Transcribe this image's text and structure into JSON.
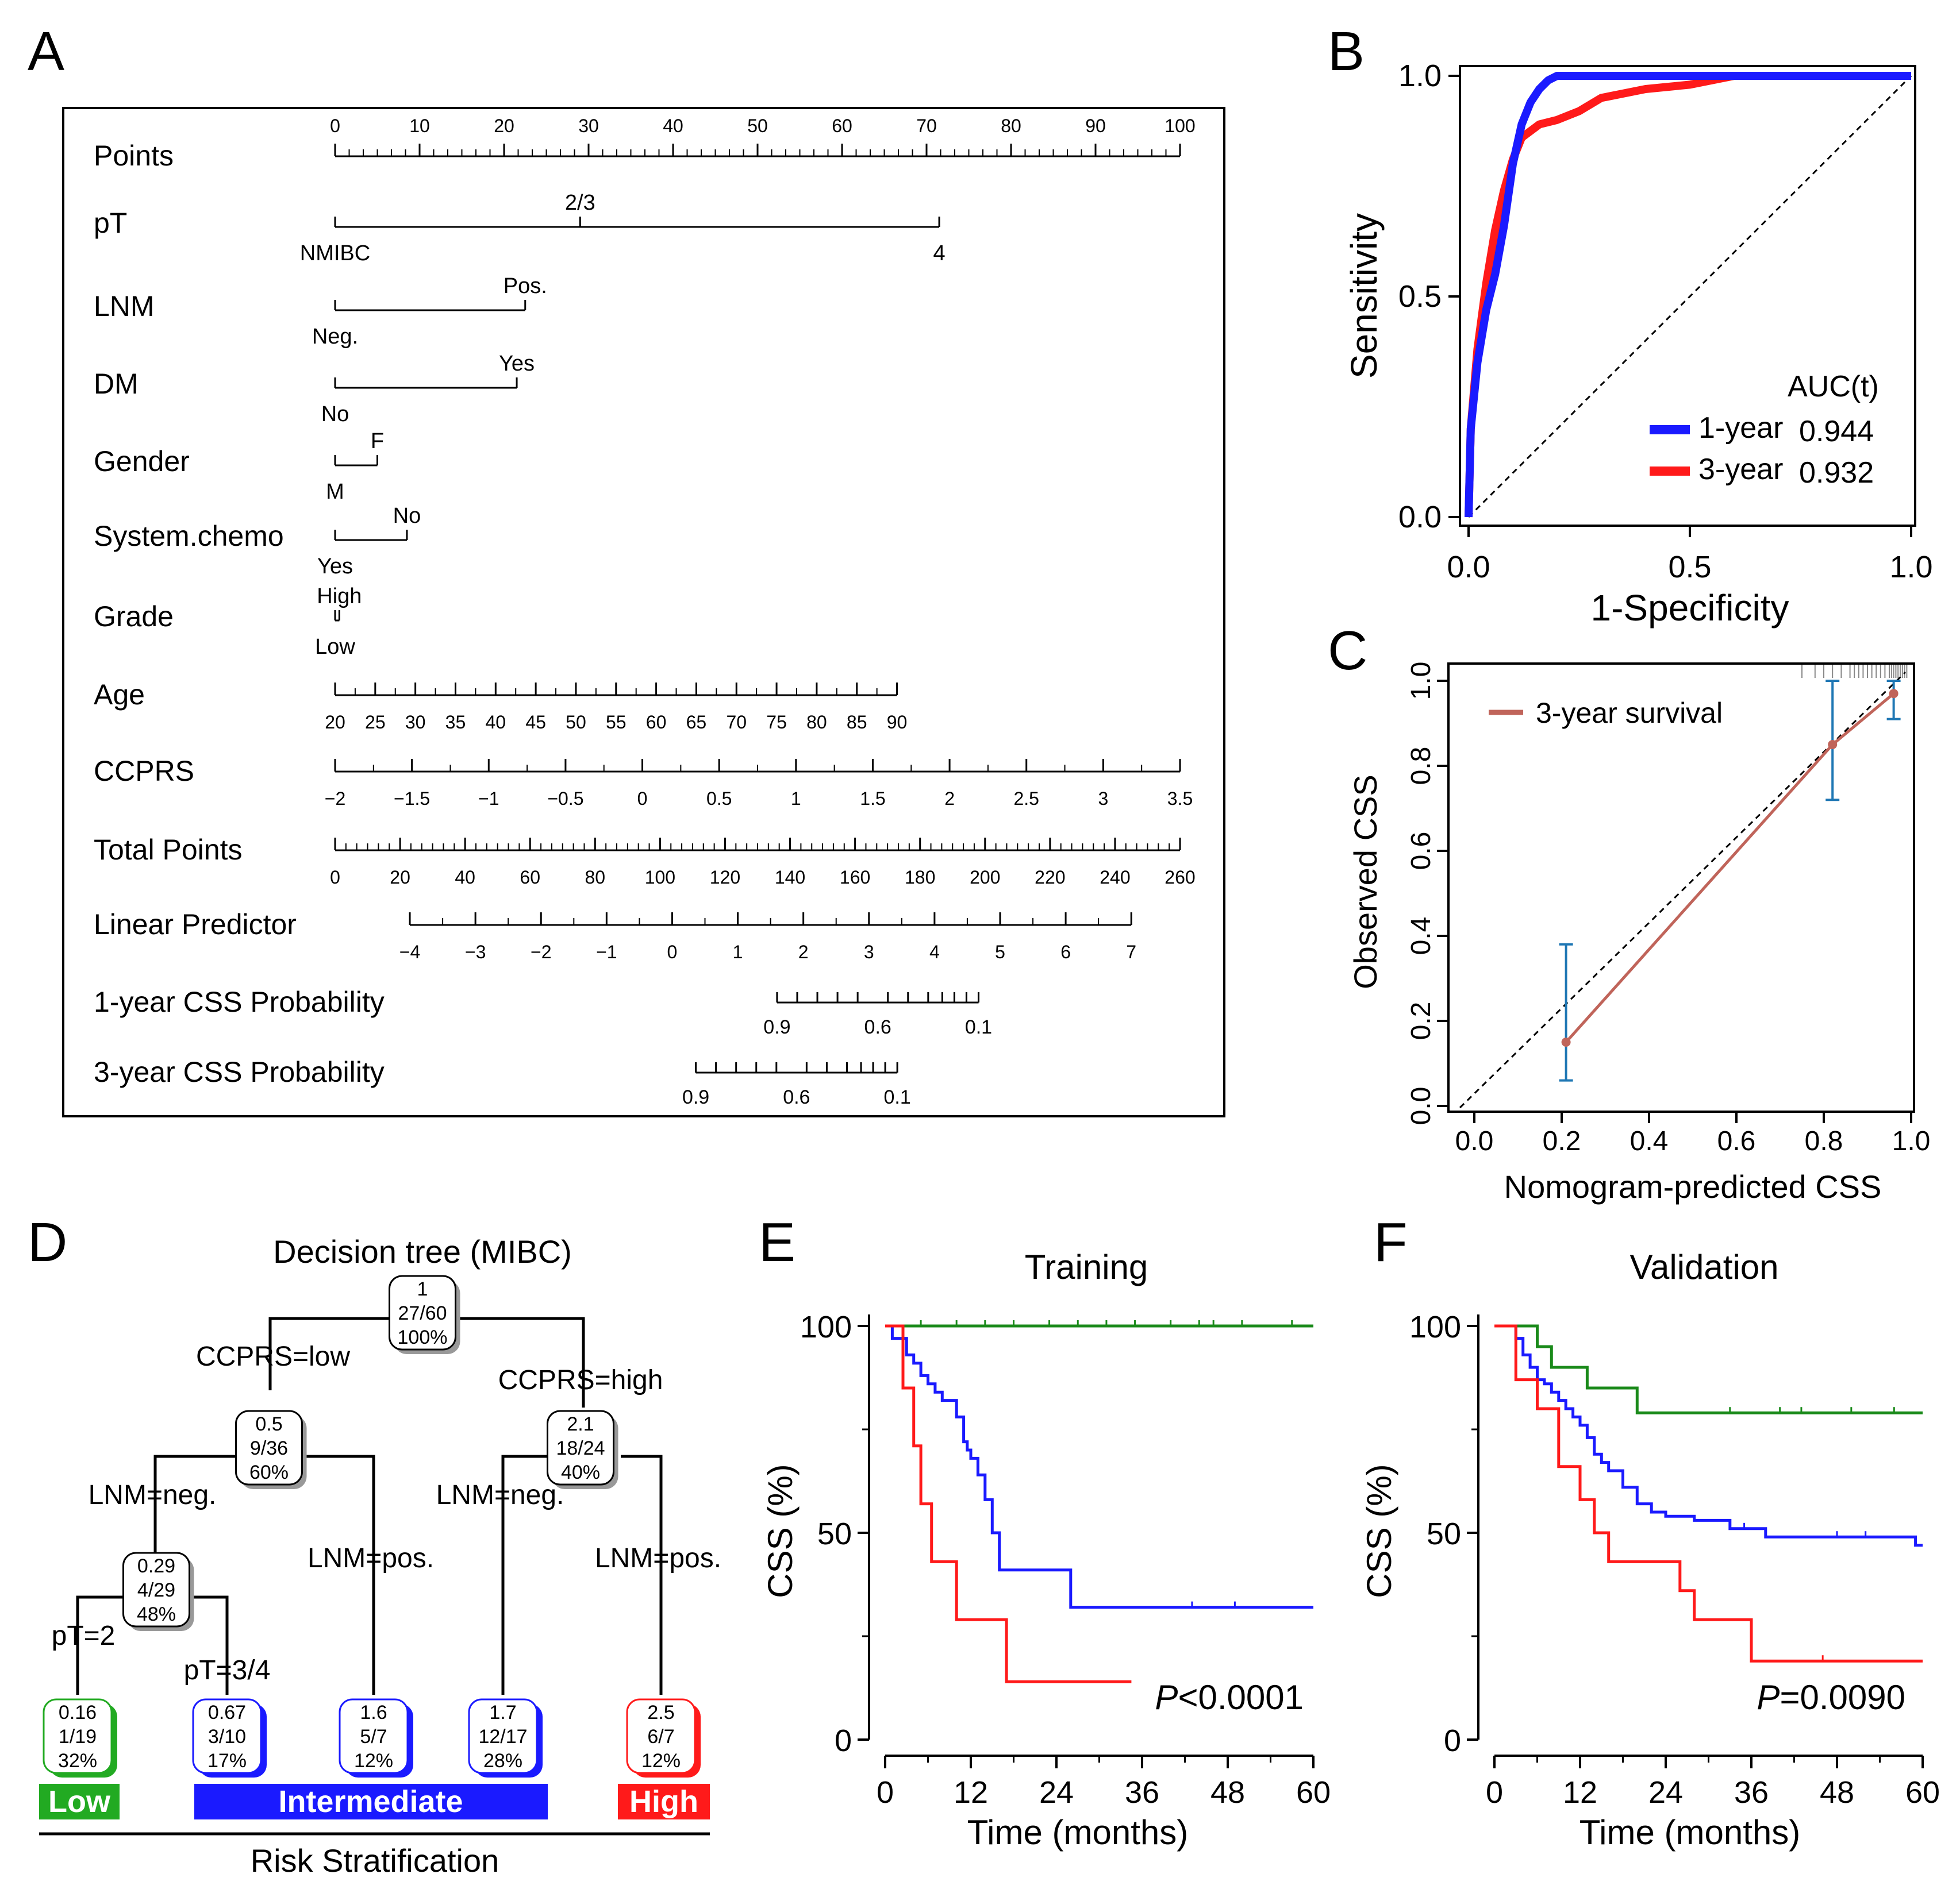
{
  "panels": {
    "A": {
      "letter": "A",
      "rows": [
        {
          "label": "Points",
          "type": "axis",
          "ticks": [
            "0",
            "10",
            "20",
            "30",
            "40",
            "50",
            "60",
            "70",
            "80",
            "90",
            "100"
          ]
        },
        {
          "label": "pT",
          "type": "factor",
          "levels": [
            "NMIBC",
            "2/3",
            "4"
          ],
          "points": [
            0,
            29,
            71.5
          ]
        },
        {
          "label": "LNM",
          "type": "factor",
          "levels": [
            "Neg.",
            "Pos."
          ],
          "points": [
            0,
            22.5
          ]
        },
        {
          "label": "DM",
          "type": "factor",
          "levels": [
            "No",
            "Yes"
          ],
          "points": [
            0,
            21.5
          ]
        },
        {
          "label": "Gender",
          "type": "factor",
          "levels": [
            "M",
            "F"
          ],
          "points": [
            0,
            5
          ]
        },
        {
          "label": "System.chemo",
          "type": "factor",
          "levels": [
            "Yes",
            "No"
          ],
          "points": [
            0,
            8.5
          ]
        },
        {
          "label": "Grade",
          "type": "factor",
          "levels": [
            "Low",
            "High"
          ],
          "points": [
            0,
            0.5
          ]
        },
        {
          "label": "Age",
          "type": "axis",
          "ticks": [
            "20",
            "25",
            "30",
            "35",
            "40",
            "45",
            "50",
            "55",
            "60",
            "65",
            "70",
            "75",
            "80",
            "85",
            "90"
          ],
          "points_range": [
            0,
            66.5
          ]
        },
        {
          "label": "CCPRS",
          "type": "axis",
          "ticks": [
            "−2",
            "−1.5",
            "−1",
            "−0.5",
            "0",
            "0.5",
            "1",
            "1.5",
            "2",
            "2.5",
            "3",
            "3.5"
          ],
          "points_range": [
            0,
            100
          ]
        },
        {
          "label": "Total Points",
          "type": "axis",
          "ticks": [
            "0",
            "20",
            "40",
            "60",
            "80",
            "100",
            "120",
            "140",
            "160",
            "180",
            "200",
            "220",
            "240",
            "260"
          ]
        },
        {
          "label": "Linear Predictor",
          "type": "axis",
          "ticks": [
            "−4",
            "−3",
            "−2",
            "−1",
            "0",
            "1",
            "2",
            "3",
            "4",
            "5",
            "6",
            "7"
          ],
          "total_range": [
            23,
            245
          ]
        },
        {
          "label": "1-year CSS Probability",
          "type": "prob",
          "ticks": [
            "0.9",
            "0.6",
            "0.1"
          ],
          "total_range": [
            136,
            198
          ]
        },
        {
          "label": "3-year CSS Probability",
          "type": "prob",
          "ticks": [
            "0.9",
            "0.6",
            "0.1"
          ],
          "total_range": [
            111,
            173
          ]
        }
      ]
    },
    "B": {
      "letter": "B",
      "chart_data": {
        "type": "line",
        "xlabel": "1-Specificity",
        "ylabel": "Sensitivity",
        "xlim": [
          0,
          1
        ],
        "ylim": [
          0,
          1
        ],
        "xticks": [
          "0.0",
          "0.5",
          "1.0"
        ],
        "yticks": [
          "0.0",
          "0.5",
          "1.0"
        ],
        "legend_title": "AUC(t)",
        "series": [
          {
            "name": "1-year",
            "auc": "0.944",
            "color": "#1a1aff",
            "x": [
              0,
              0.005,
              0.02,
              0.04,
              0.06,
              0.08,
              0.1,
              0.12,
              0.14,
              0.16,
              0.18,
              0.2,
              0.22,
              0.25,
              0.3,
              1
            ],
            "y": [
              0,
              0.2,
              0.35,
              0.47,
              0.55,
              0.66,
              0.8,
              0.89,
              0.94,
              0.97,
              0.99,
              1.0,
              1.0,
              1.0,
              1.0,
              1.0
            ]
          },
          {
            "name": "3-year",
            "auc": "0.932",
            "color": "#ff1a1a",
            "x": [
              0,
              0.005,
              0.02,
              0.04,
              0.06,
              0.08,
              0.1,
              0.12,
              0.16,
              0.2,
              0.25,
              0.3,
              0.4,
              0.5,
              0.6,
              1
            ],
            "y": [
              0,
              0.2,
              0.38,
              0.53,
              0.65,
              0.74,
              0.81,
              0.86,
              0.89,
              0.9,
              0.92,
              0.95,
              0.97,
              0.98,
              1.0,
              1.0
            ]
          }
        ]
      }
    },
    "C": {
      "letter": "C",
      "chart_data": {
        "type": "line",
        "xlabel": "Nomogram-predicted CSS",
        "ylabel": "Observed CSS",
        "xlim": [
          0,
          1
        ],
        "ylim": [
          0,
          1
        ],
        "xticks": [
          "0.0",
          "0.2",
          "0.4",
          "0.6",
          "0.8",
          "1.0"
        ],
        "yticks": [
          "0.0",
          "0.2",
          "0.4",
          "0.6",
          "0.8",
          "1.0"
        ],
        "series": [
          {
            "name": "3-year survival",
            "color": "#c0645a",
            "x": [
              0.21,
              0.82,
              0.96
            ],
            "y": [
              0.15,
              0.85,
              0.97
            ],
            "ci_low": [
              0.06,
              0.72,
              0.91
            ],
            "ci_high": [
              0.38,
              1.0,
              1.0
            ]
          }
        ],
        "rug": [
          0.75,
          0.78,
          0.8,
          0.82,
          0.84,
          0.86,
          0.87,
          0.88,
          0.89,
          0.9,
          0.91,
          0.92,
          0.93,
          0.94,
          0.95,
          0.955,
          0.96,
          0.965,
          0.97,
          0.975,
          0.98,
          0.985,
          0.99
        ]
      }
    },
    "D": {
      "letter": "D",
      "title": "Decision tree (MIBC)",
      "nodes": {
        "root": {
          "lines": [
            "1",
            "27/60",
            "100%"
          ]
        },
        "low": {
          "lines": [
            "0.5",
            "9/36",
            "60%"
          ]
        },
        "high": {
          "lines": [
            "2.1",
            "18/24",
            "40%"
          ]
        },
        "lowneg": {
          "lines": [
            "0.29",
            "4/29",
            "48%"
          ]
        }
      },
      "leaves": [
        {
          "lines": [
            "0.16",
            "1/19",
            "32%"
          ],
          "color": "#22aa22"
        },
        {
          "lines": [
            "0.67",
            "3/10",
            "17%"
          ],
          "color": "#1a1aff"
        },
        {
          "lines": [
            "1.6",
            "5/7",
            "12%"
          ],
          "color": "#1a1aff"
        },
        {
          "lines": [
            "1.7",
            "12/17",
            "28%"
          ],
          "color": "#1a1aff"
        },
        {
          "lines": [
            "2.5",
            "6/7",
            "12%"
          ],
          "color": "#ff1a1a"
        }
      ],
      "splits": {
        "ccprs_low": "CCPRS=low",
        "ccprs_high": "CCPRS=high",
        "lnm_neg_1": "LNM=neg.",
        "lnm_pos_1": "LNM=pos.",
        "lnm_neg_2": "LNM=neg.",
        "lnm_pos_2": "LNM=pos.",
        "pt2": "pT=2",
        "pt34": "pT=3/4"
      },
      "risk": {
        "low": "Low",
        "intermediate": "Intermediate",
        "high": "High",
        "caption": "Risk Stratification",
        "colors": {
          "low": "#22aa22",
          "intermediate": "#1a1aff",
          "high": "#ff1a1a"
        }
      }
    },
    "E": {
      "letter": "E",
      "chart_data": {
        "type": "line",
        "subtype": "kaplan-meier",
        "title": "Training",
        "xlabel": "Time (months)",
        "ylabel": "CSS (%)",
        "xlim": [
          0,
          60
        ],
        "ylim": [
          0,
          100
        ],
        "xticks": [
          "0",
          "12",
          "24",
          "36",
          "48",
          "60"
        ],
        "yticks": [
          "0",
          "50",
          "100"
        ],
        "pvalue_prefix": "P",
        "pvalue_value": "<0.0001",
        "series": [
          {
            "name": "Low",
            "color": "#1a8a1a",
            "t": [
              0,
              60
            ],
            "s": [
              100,
              100
            ],
            "censor": [
              5,
              10,
              14,
              18,
              23,
              27,
              31,
              35,
              40,
              44,
              46,
              50,
              57
            ]
          },
          {
            "name": "Intermediate",
            "color": "#1a1aff",
            "t": [
              0,
              1,
              3,
              4,
              5,
              6,
              7,
              8,
              9,
              10,
              11,
              11.5,
              12,
              13,
              14,
              15,
              16,
              26,
              60
            ],
            "s": [
              100,
              97,
              93,
              91,
              88,
              86,
              84,
              82,
              82,
              78,
              72,
              70,
              68,
              64,
              58,
              50,
              41,
              32,
              32
            ],
            "censor": [
              43,
              49
            ]
          },
          {
            "name": "High",
            "color": "#ff1a1a",
            "t": [
              0,
              2.5,
              4,
              5,
              6.5,
              10,
              17,
              34.5
            ],
            "s": [
              100,
              85,
              71,
              57,
              43,
              29,
              14,
              14
            ],
            "censor": []
          }
        ]
      }
    },
    "F": {
      "letter": "F",
      "chart_data": {
        "type": "line",
        "subtype": "kaplan-meier",
        "title": "Validation",
        "xlabel": "Time (months)",
        "ylabel": "CSS (%)",
        "xlim": [
          0,
          60
        ],
        "ylim": [
          0,
          100
        ],
        "xticks": [
          "0",
          "12",
          "24",
          "36",
          "48",
          "60"
        ],
        "yticks": [
          "0",
          "50",
          "100"
        ],
        "pvalue_prefix": "P",
        "pvalue_value": "=0.0090",
        "series": [
          {
            "name": "Low",
            "color": "#1a8a1a",
            "t": [
              0,
              6,
              8,
              13,
              20,
              60
            ],
            "s": [
              100,
              95,
              90,
              85,
              79,
              79
            ],
            "censor": [
              33,
              40,
              43,
              50,
              56
            ]
          },
          {
            "name": "Intermediate",
            "color": "#1a1aff",
            "t": [
              0,
              3,
              4,
              5,
              6,
              7,
              8,
              9,
              10,
              11,
              12,
              13,
              14,
              15,
              16,
              18,
              20,
              22,
              24,
              28,
              33,
              38,
              45,
              55,
              59,
              60
            ],
            "s": [
              100,
              97,
              93,
              90,
              87,
              86,
              84,
              82,
              80,
              78,
              76,
              73,
              69,
              67,
              65,
              61,
              57,
              55,
              54,
              53,
              51,
              49,
              49,
              49,
              47,
              47
            ],
            "censor": [
              35,
              48,
              52
            ]
          },
          {
            "name": "High",
            "color": "#ff1a1a",
            "t": [
              0,
              3,
              6,
              9,
              12,
              14,
              16,
              26,
              28,
              30,
              36,
              60
            ],
            "s": [
              100,
              87,
              80,
              66,
              58,
              50,
              43,
              36,
              29,
              29,
              19,
              19
            ],
            "censor": [
              46
            ]
          }
        ]
      }
    }
  }
}
